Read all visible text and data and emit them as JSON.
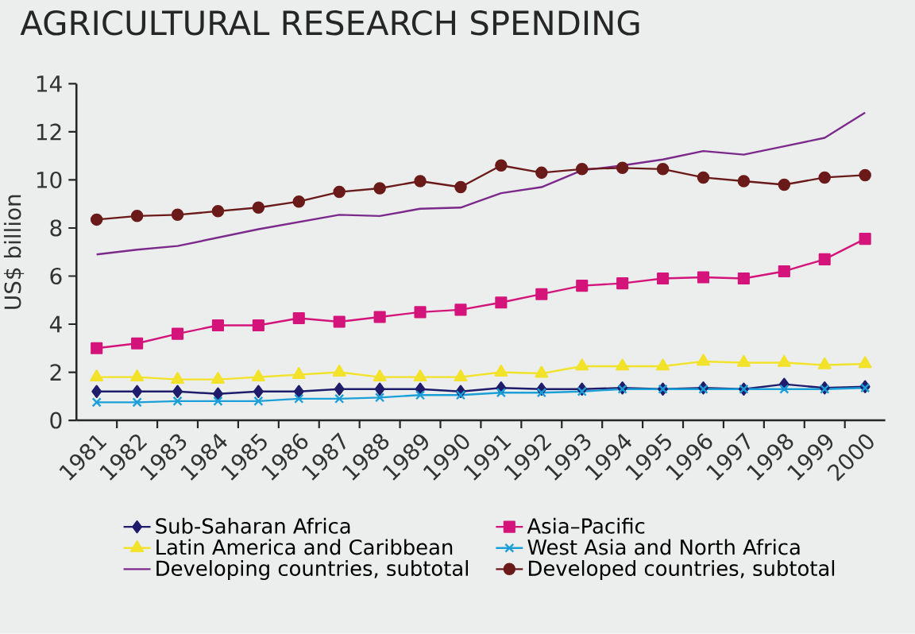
{
  "chart_data": {
    "type": "line",
    "title": "AGRICULTURAL RESEARCH SPENDING",
    "ylabel": "US$ billion",
    "categories": [
      "1981",
      "1982",
      "1983",
      "1984",
      "1985",
      "1986",
      "1987",
      "1988",
      "1989",
      "1990",
      "1991",
      "1992",
      "1993",
      "1994",
      "1995",
      "1996",
      "1997",
      "1998",
      "1999",
      "2000"
    ],
    "ylim": [
      0,
      14
    ],
    "yticks": [
      0,
      2,
      4,
      6,
      8,
      10,
      12,
      14
    ],
    "grid": false,
    "legend": "bottom",
    "series": [
      {
        "name": "Sub-Saharan Africa",
        "color": "#1f1d6b",
        "marker": "diamond",
        "values": [
          1.2,
          1.2,
          1.2,
          1.1,
          1.2,
          1.2,
          1.3,
          1.3,
          1.3,
          1.2,
          1.35,
          1.3,
          1.3,
          1.35,
          1.3,
          1.35,
          1.3,
          1.5,
          1.35,
          1.4
        ]
      },
      {
        "name": "Asia–Pacific",
        "color": "#d4147a",
        "marker": "square",
        "values": [
          3.0,
          3.2,
          3.6,
          3.95,
          3.95,
          4.25,
          4.1,
          4.3,
          4.5,
          4.6,
          4.9,
          5.25,
          5.6,
          5.7,
          5.9,
          5.95,
          5.9,
          6.2,
          6.7,
          7.55
        ]
      },
      {
        "name": "Latin America and Caribbean",
        "color": "#f2e22a",
        "marker": "triangle",
        "values": [
          1.8,
          1.8,
          1.7,
          1.7,
          1.8,
          1.9,
          2.0,
          1.8,
          1.8,
          1.8,
          2.0,
          1.95,
          2.25,
          2.25,
          2.25,
          2.45,
          2.4,
          2.4,
          2.3,
          2.35
        ]
      },
      {
        "name": "West Asia and North Africa",
        "color": "#1a9fd8",
        "marker": "cross",
        "values": [
          0.75,
          0.75,
          0.8,
          0.8,
          0.8,
          0.9,
          0.9,
          0.95,
          1.05,
          1.05,
          1.15,
          1.15,
          1.2,
          1.3,
          1.3,
          1.3,
          1.3,
          1.3,
          1.3,
          1.35
        ]
      },
      {
        "name": "Developing countries, subtotal",
        "color": "#7b2a8c",
        "marker": "none",
        "values": [
          6.9,
          7.1,
          7.25,
          7.6,
          7.95,
          8.25,
          8.55,
          8.5,
          8.8,
          8.85,
          9.45,
          9.7,
          10.4,
          10.6,
          10.85,
          11.2,
          11.05,
          11.4,
          11.75,
          12.8
        ]
      },
      {
        "name": "Developed countries, subtotal",
        "color": "#6b1a1a",
        "marker": "circle",
        "values": [
          8.35,
          8.5,
          8.55,
          8.7,
          8.85,
          9.1,
          9.5,
          9.65,
          9.95,
          9.7,
          10.6,
          10.3,
          10.45,
          10.5,
          10.45,
          10.1,
          9.95,
          9.8,
          10.1,
          10.2
        ]
      }
    ]
  }
}
